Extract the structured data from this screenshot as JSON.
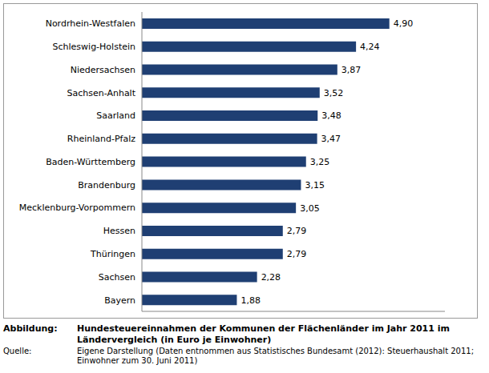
{
  "chart_data": {
    "type": "bar",
    "orientation": "horizontal",
    "title": "Hundesteuereinnahmen der Kommunen der Flächenländer im Jahr 2011 im Ländervergleich (in Euro je Einwohner)",
    "categories": [
      "Nordrhein-Westfalen",
      "Schleswig-Holstein",
      "Niedersachsen",
      "Sachsen-Anhalt",
      "Saarland",
      "Rheinland-Pfalz",
      "Baden-Württemberg",
      "Brandenburg",
      "Mecklenburg-Vorpommern",
      "Hessen",
      "Thüringen",
      "Sachsen",
      "Bayern"
    ],
    "values": [
      4.9,
      4.24,
      3.87,
      3.52,
      3.48,
      3.47,
      3.25,
      3.15,
      3.05,
      2.79,
      2.79,
      2.28,
      1.88
    ],
    "value_labels": [
      "4,90",
      "4,24",
      "3,87",
      "3,52",
      "3,48",
      "3,47",
      "3,25",
      "3,15",
      "3,05",
      "2,79",
      "2,79",
      "2,28",
      "1,88"
    ],
    "color": "#1f3f73",
    "xlim": [
      0,
      6
    ],
    "data_labels": true,
    "tick_labels": "y",
    "grid": false
  },
  "caption": {
    "label": "Abbildung:",
    "source_label": "Quelle:",
    "source": "Eigene Darstellung (Daten entnommen aus Statistisches Bundesamt (2012): Steuerhaushalt 2011; Einwohner zum 30. Juni 2011)"
  }
}
